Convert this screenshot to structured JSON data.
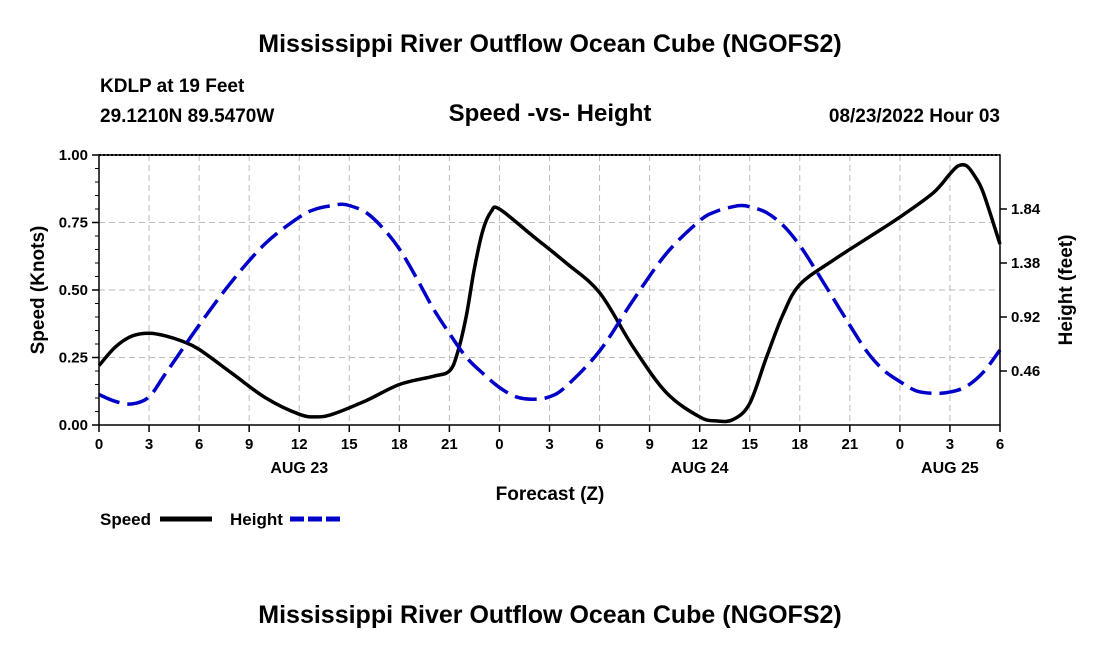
{
  "page": {
    "title": "Mississippi River Outflow Ocean Cube (NGOFS2)",
    "footer_title": "Mississippi River Outflow Ocean Cube (NGOFS2)",
    "station": "KDLP at 19 Feet",
    "coords": "29.1210N  89.5470W",
    "timestamp": "08/23/2022 Hour 03"
  },
  "chart_data": {
    "type": "line",
    "title": "Speed -vs- Height",
    "xlabel": "Forecast (Z)",
    "ylabel": "Speed (Knots)",
    "y2label": "Height (feet)",
    "xlim": [
      0,
      54
    ],
    "ylim": [
      0,
      1.0
    ],
    "y2lim": [
      0,
      2.3
    ],
    "grid": true,
    "x_ticks": [
      {
        "x": 0,
        "label": "0"
      },
      {
        "x": 3,
        "label": "3"
      },
      {
        "x": 6,
        "label": "6"
      },
      {
        "x": 9,
        "label": "9"
      },
      {
        "x": 12,
        "label": "12"
      },
      {
        "x": 15,
        "label": "15"
      },
      {
        "x": 18,
        "label": "18"
      },
      {
        "x": 21,
        "label": "21"
      },
      {
        "x": 24,
        "label": "0"
      },
      {
        "x": 27,
        "label": "3"
      },
      {
        "x": 30,
        "label": "6"
      },
      {
        "x": 33,
        "label": "9"
      },
      {
        "x": 36,
        "label": "12"
      },
      {
        "x": 39,
        "label": "15"
      },
      {
        "x": 42,
        "label": "18"
      },
      {
        "x": 45,
        "label": "21"
      },
      {
        "x": 48,
        "label": "0"
      },
      {
        "x": 51,
        "label": "3"
      },
      {
        "x": 54,
        "label": "6"
      }
    ],
    "date_labels": [
      {
        "x": 12,
        "label": "AUG 23"
      },
      {
        "x": 36,
        "label": "AUG 24"
      },
      {
        "x": 51,
        "label": "AUG 25"
      }
    ],
    "y_ticks": [
      {
        "v": 0.0,
        "label": "0.00"
      },
      {
        "v": 0.25,
        "label": "0.25"
      },
      {
        "v": 0.5,
        "label": "0.50"
      },
      {
        "v": 0.75,
        "label": "0.75"
      },
      {
        "v": 1.0,
        "label": "1.00"
      }
    ],
    "y2_ticks": [
      {
        "v": 0.46,
        "label": "0.46"
      },
      {
        "v": 0.92,
        "label": "0.92"
      },
      {
        "v": 1.38,
        "label": "1.38"
      },
      {
        "v": 1.84,
        "label": "1.84"
      }
    ],
    "series": [
      {
        "name": "Speed",
        "axis": "left",
        "color": "#000000",
        "dash": "solid",
        "x": [
          0,
          1,
          2,
          3,
          4,
          5,
          6,
          8,
          10,
          12,
          13,
          14,
          16,
          18,
          20,
          21,
          21.5,
          22,
          22.5,
          23,
          23.5,
          24,
          26,
          28,
          30,
          32,
          34,
          36,
          37,
          38,
          39,
          40,
          41,
          42,
          44,
          46,
          48,
          50,
          51,
          51.5,
          52,
          52.5,
          53,
          54
        ],
        "values": [
          0.22,
          0.29,
          0.33,
          0.34,
          0.33,
          0.31,
          0.28,
          0.19,
          0.1,
          0.04,
          0.03,
          0.04,
          0.09,
          0.15,
          0.18,
          0.2,
          0.27,
          0.4,
          0.58,
          0.72,
          0.79,
          0.8,
          0.7,
          0.6,
          0.49,
          0.29,
          0.12,
          0.03,
          0.015,
          0.02,
          0.08,
          0.25,
          0.41,
          0.52,
          0.61,
          0.69,
          0.77,
          0.86,
          0.93,
          0.96,
          0.96,
          0.92,
          0.86,
          0.67
        ]
      },
      {
        "name": "Height",
        "axis": "right",
        "color": "#0000c8",
        "dash": "dashed",
        "x": [
          0,
          1,
          2,
          3,
          4,
          6,
          8,
          10,
          12,
          13,
          14,
          14.5,
          15,
          16,
          17,
          18,
          19,
          20,
          21,
          22,
          23,
          24,
          25,
          26,
          27,
          28,
          30,
          32,
          34,
          36,
          37,
          38,
          38.5,
          39,
          40,
          41,
          42,
          43,
          44,
          45,
          46,
          47,
          48,
          49,
          50,
          51,
          52,
          53,
          54
        ],
        "values": [
          0.26,
          0.2,
          0.18,
          0.24,
          0.44,
          0.85,
          1.23,
          1.55,
          1.77,
          1.84,
          1.87,
          1.88,
          1.87,
          1.81,
          1.68,
          1.5,
          1.26,
          1.0,
          0.78,
          0.58,
          0.44,
          0.32,
          0.24,
          0.22,
          0.24,
          0.33,
          0.63,
          1.06,
          1.46,
          1.74,
          1.82,
          1.86,
          1.87,
          1.86,
          1.81,
          1.7,
          1.53,
          1.31,
          1.08,
          0.85,
          0.63,
          0.47,
          0.37,
          0.29,
          0.27,
          0.28,
          0.33,
          0.45,
          0.64
        ]
      }
    ]
  }
}
